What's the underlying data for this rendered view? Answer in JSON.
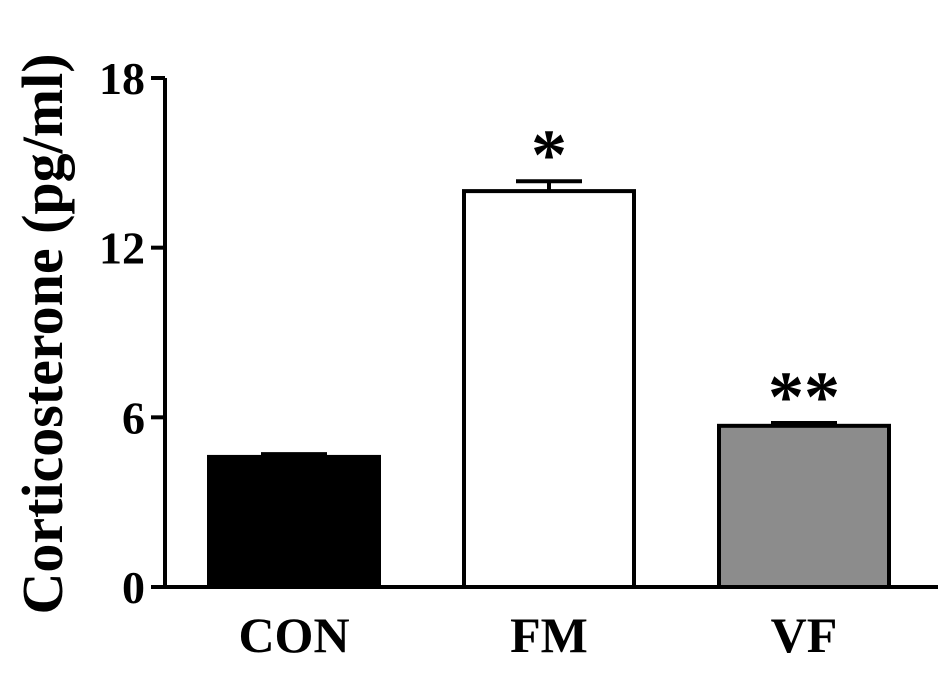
{
  "chart_data": {
    "type": "bar",
    "categories": [
      "CON",
      "FM",
      "VF"
    ],
    "values": [
      4.6,
      14.0,
      5.7
    ],
    "errors": [
      0.1,
      0.35,
      0.1
    ],
    "significance": [
      "",
      "*",
      "**"
    ],
    "colors": [
      "#000000",
      "#ffffff",
      "#8c8c8c"
    ],
    "ylabel": "Corticosterone (pg/ml)",
    "yticks": [
      "0",
      "6",
      "12",
      "18"
    ],
    "ylim": [
      0,
      18
    ],
    "grid": false,
    "legend": "none"
  }
}
